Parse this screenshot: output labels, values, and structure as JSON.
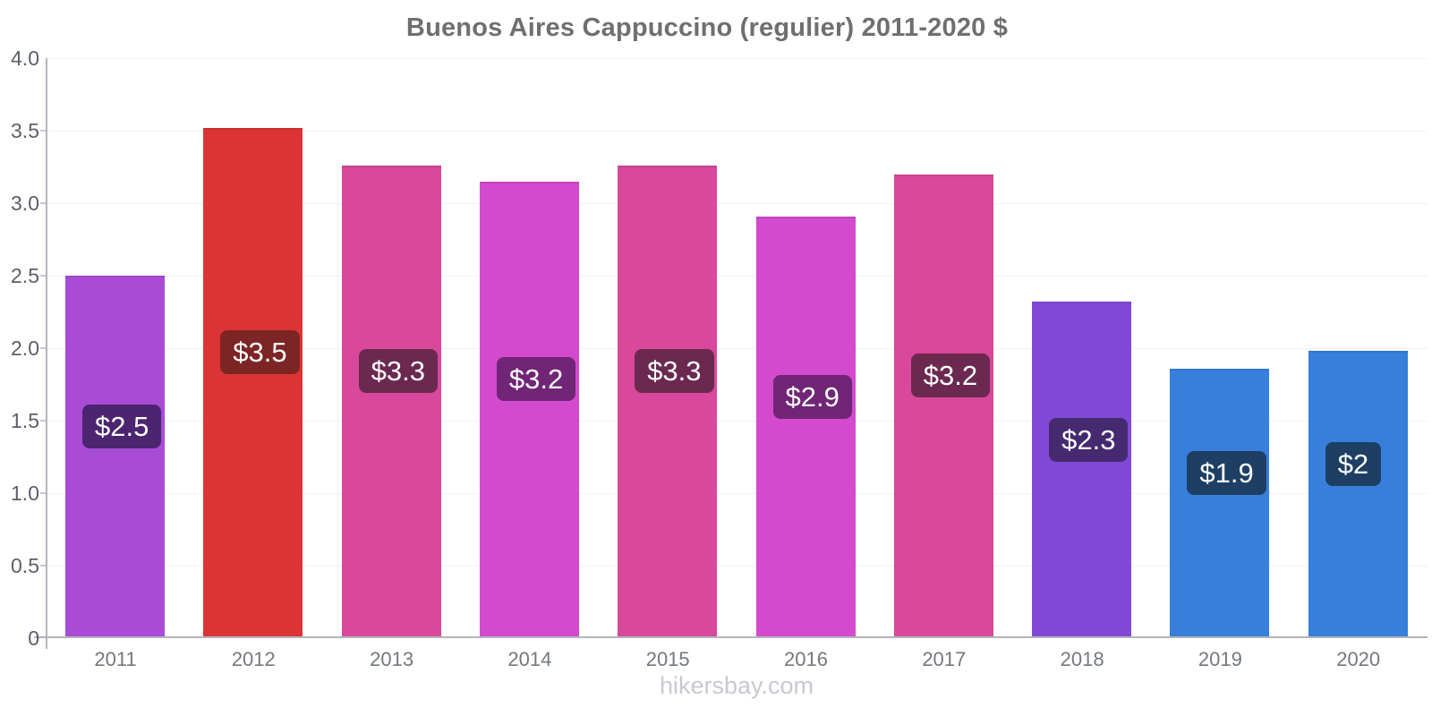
{
  "chart_data": {
    "type": "bar",
    "title": "Buenos Aires Cappuccino (regulier) 2011-2020 $",
    "xlabel": "",
    "ylabel": "",
    "ylim": [
      0,
      4
    ],
    "grid": "horizontal-light",
    "legend": "none",
    "categories": [
      "2011",
      "2012",
      "2013",
      "2014",
      "2015",
      "2016",
      "2017",
      "2018",
      "2019",
      "2020"
    ],
    "values": [
      2.5,
      3.52,
      3.26,
      3.15,
      3.26,
      2.91,
      3.2,
      2.32,
      1.86,
      1.98
    ],
    "bar_labels": [
      "$2.5",
      "$3.5",
      "$3.3",
      "$3.2",
      "$3.3",
      "$2.9",
      "$3.2",
      "$2.3",
      "$1.9",
      "$2"
    ],
    "bar_colors": [
      "#A84CD6",
      "#DC3434",
      "#D8489B",
      "#D44ACE",
      "#D8489B",
      "#D44ACE",
      "#D8489B",
      "#8149D6",
      "#377FDB",
      "#377FDB"
    ],
    "badge_colors": [
      "#4C2470",
      "#7D2424",
      "#6B2950",
      "#702576",
      "#6B2950",
      "#702576",
      "#6B2950",
      "#452A70",
      "#1E3F63",
      "#1E3F63"
    ],
    "yticks": [
      {
        "value": 4.0,
        "label": "4.0"
      },
      {
        "value": 3.5,
        "label": "3.5"
      },
      {
        "value": 3.0,
        "label": "3.0"
      },
      {
        "value": 2.5,
        "label": "2.5"
      },
      {
        "value": 2.0,
        "label": "2.0"
      },
      {
        "value": 1.5,
        "label": "1.5"
      },
      {
        "value": 1.0,
        "label": "1.0"
      },
      {
        "value": 0.5,
        "label": "0.5"
      },
      {
        "value": 0,
        "label": "0"
      }
    ]
  },
  "footer": {
    "text": "hikersbay.com"
  },
  "colors": {
    "background": "#FFFFFF",
    "title_text": "#6F6F72",
    "axis_line": "#B4B4BC",
    "gridline": "#F2F2F6",
    "ytick_text": "#5B5F67",
    "xtick_text": "#74787F",
    "badge_text": "#FFFFFF",
    "footer_text": "#C8C8D2"
  }
}
